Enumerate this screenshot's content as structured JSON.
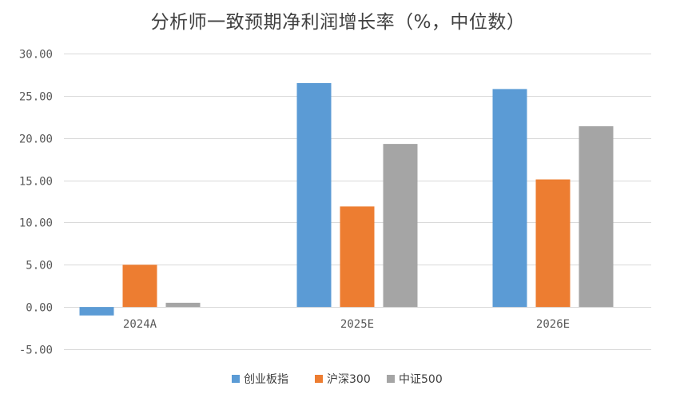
{
  "chart_data": {
    "type": "bar",
    "title": "分析师一致预期净利润增长率（%，中位数）",
    "categories": [
      "2024A",
      "2025E",
      "2026E"
    ],
    "series": [
      {
        "name": "创业板指",
        "color": "#5b9bd5",
        "values": [
          -1.0,
          26.5,
          25.8
        ]
      },
      {
        "name": "沪深300",
        "color": "#ed7d31",
        "values": [
          5.0,
          11.9,
          15.1
        ]
      },
      {
        "name": "中证500",
        "color": "#a5a5a5",
        "values": [
          0.5,
          19.3,
          21.4
        ]
      }
    ],
    "ylim": [
      -5,
      30
    ],
    "yticks": [
      "-5.00",
      "0.00",
      "5.00",
      "10.00",
      "15.00",
      "20.00",
      "25.00",
      "30.00"
    ],
    "ytick_values": [
      -5,
      0,
      5,
      10,
      15,
      20,
      25,
      30
    ],
    "grid": true,
    "legend": "bottom"
  }
}
